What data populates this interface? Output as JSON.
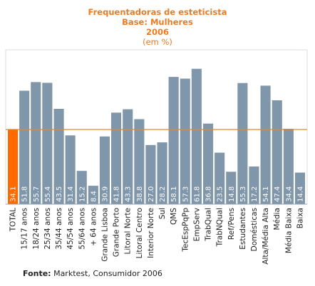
{
  "header": {
    "title_line1": "Frequentadoras de esteticista",
    "title_line2": "Base: Mulheres",
    "title_line3": "2006",
    "title_line4": "(em %)"
  },
  "source": {
    "label": "Fonte:",
    "text": "Marktest, Consumidor 2006"
  },
  "colors": {
    "bar": "#8096ab",
    "highlight": "#ff6a00",
    "reference_line": "#e08a2a",
    "title": "#f07a1e"
  },
  "chart_data": {
    "type": "bar",
    "categories": [
      "TOTAL",
      "15/17 anos",
      "18/24 anos",
      "25/34 anos",
      "35/44 anos",
      "45/54 anos",
      "55/64 anos",
      "+ 64 anos",
      "Grande Lisboa",
      "Grande Porto",
      "Litoral Norte",
      "Litoral Centro",
      "Interior Norte",
      "Sul",
      "QMS",
      "TecEspPqPp",
      "EmpServ",
      "TrabQual",
      "TrabNQual",
      "Ref/Pens",
      "Estudantes",
      "Domésticas",
      "Alta/Média Alta",
      "Média",
      "Média Baixa",
      "Baixa"
    ],
    "values": [
      34.1,
      51.8,
      55.7,
      55.4,
      43.5,
      31.4,
      15.2,
      8.4,
      30.9,
      41.8,
      43.3,
      38.8,
      27.0,
      28.2,
      58.1,
      57.3,
      61.8,
      36.8,
      23.5,
      14.8,
      55.3,
      17.2,
      54.1,
      47.4,
      34.4,
      14.4
    ],
    "value_labels": [
      "34.1",
      "51.8",
      "55.7",
      "55.4",
      "43.5",
      "31.4",
      "15.2",
      "8.4",
      "30.9",
      "41.8",
      "43.3",
      "38.8",
      "27.0",
      "28.2",
      "58.1",
      "57.3",
      "61.8",
      "36.8",
      "23.5",
      "14.8",
      "55.3",
      "17.2",
      "54.1",
      "47.4",
      "34.4",
      "14.4"
    ],
    "highlight_index": 0,
    "reference_value": 34.1,
    "ylim": [
      0,
      65
    ],
    "grid": false,
    "legend": "none"
  }
}
